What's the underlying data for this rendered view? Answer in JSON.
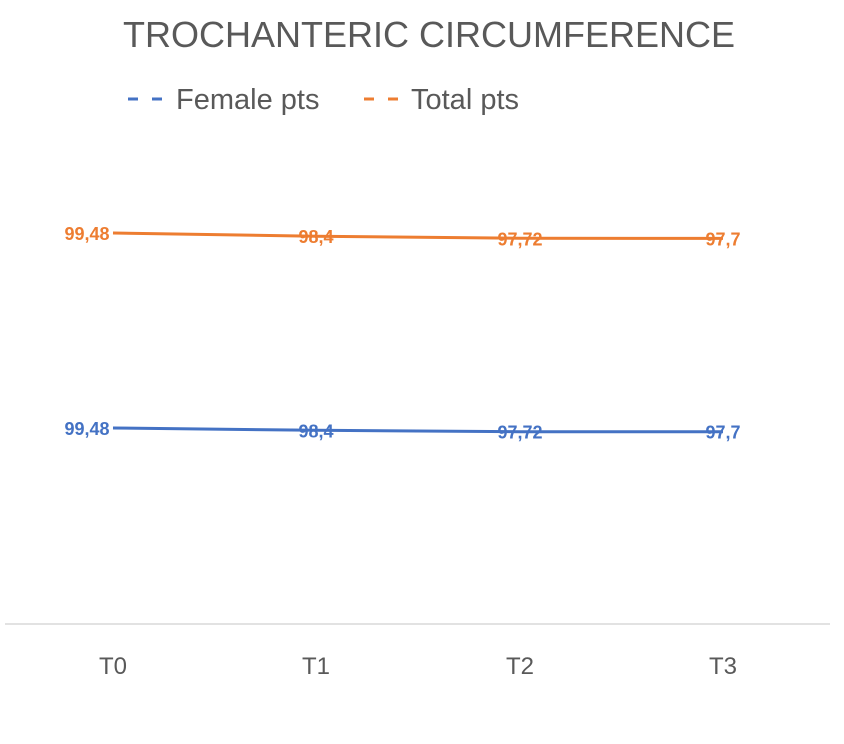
{
  "chart_data": {
    "type": "line",
    "title": "TROCHANTERIC CIRCUMFERENCE",
    "categories": [
      "T0",
      "T1",
      "T2",
      "T3"
    ],
    "series": [
      {
        "name": "Female pts",
        "values": [
          99.48,
          98.4,
          97.72,
          97.7
        ],
        "labels": [
          "99,48",
          "98,4",
          "97,72",
          "97,7"
        ],
        "color": "#4472C4"
      },
      {
        "name": "Total pts",
        "values": [
          99.48,
          98.4,
          97.72,
          97.7
        ],
        "labels": [
          "99,48",
          "98,4",
          "97,72",
          "97,7"
        ],
        "color": "#ED7D31"
      }
    ],
    "legend": "top",
    "grid": false,
    "axis_color": "#d9d9d9"
  }
}
